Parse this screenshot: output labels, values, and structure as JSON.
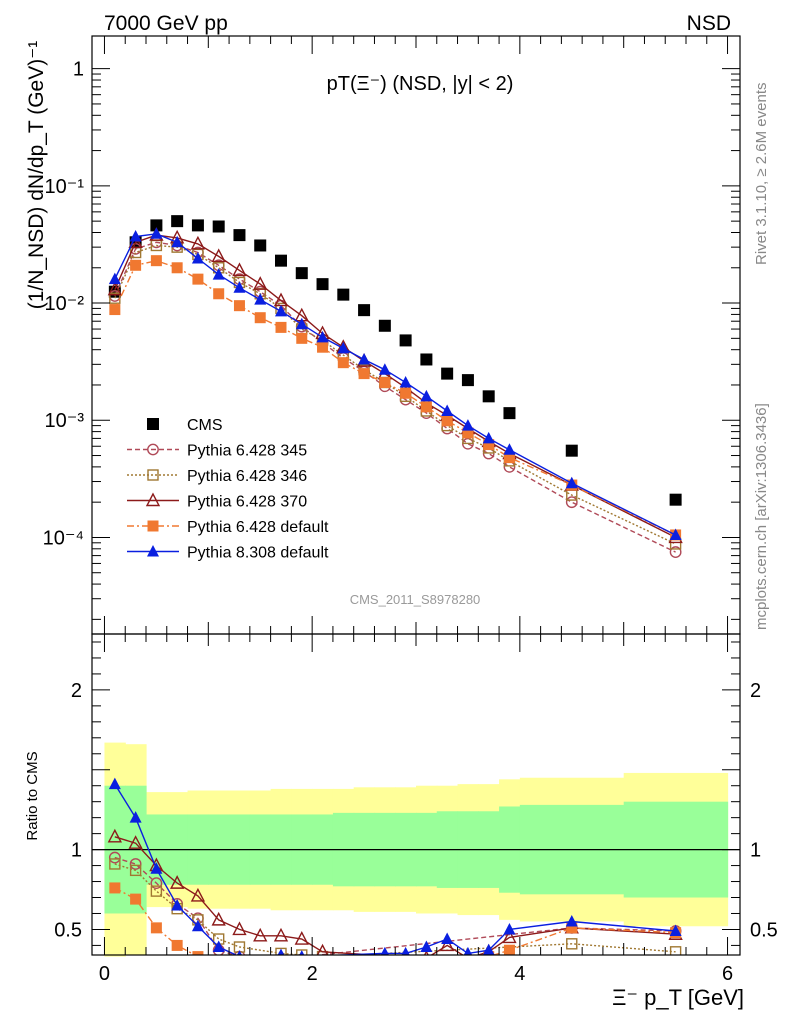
{
  "header": {
    "left": "7000 GeV pp",
    "right": "NSD"
  },
  "side_text": {
    "rivet": "Rivet 3.1.10, ≥ 2.6M events",
    "mcplots": "mcplots.cern.ch [arXiv:1306.3436]"
  },
  "chart_data": [
    {
      "type": "scatter",
      "title": "pT(Ξ⁻) (NSD, |y| < 2)",
      "watermark": "CMS_2011_S8978280",
      "ylabel": "(1/N_NSD) dN/dp_T (GeV)⁻¹",
      "yscale": "log",
      "xlim": [
        -0.12,
        6.12
      ],
      "ylim": [
        1.5e-05,
        1.9
      ],
      "ytick_labels": [
        "10⁻⁴",
        "10⁻³",
        "10⁻²",
        "10⁻¹",
        "1"
      ],
      "legend_position": "lower-left",
      "x": [
        0.1,
        0.3,
        0.5,
        0.7,
        0.9,
        1.1,
        1.3,
        1.5,
        1.7,
        1.9,
        2.1,
        2.3,
        2.5,
        2.7,
        2.9,
        3.1,
        3.3,
        3.5,
        3.7,
        3.9,
        4.5,
        5.5
      ],
      "series": [
        {
          "name": "CMS",
          "color": "#000000",
          "marker": "square",
          "line": "none",
          "values": [
            0.0125,
            0.033,
            0.046,
            0.05,
            0.046,
            0.045,
            0.038,
            0.031,
            0.023,
            0.018,
            0.0145,
            0.0118,
            0.0087,
            0.0064,
            0.0048,
            0.0033,
            0.0025,
            0.0022,
            0.0016,
            0.00115,
            0.00055,
            0.00021
          ]
        },
        {
          "name": "Pythia 6.428 345",
          "color": "#b04a58",
          "marker": "circle-open",
          "line": "dashed",
          "values": [
            0.0115,
            0.029,
            0.033,
            0.031,
            0.027,
            0.021,
            0.016,
            0.0125,
            0.0095,
            0.0063,
            0.0046,
            0.0034,
            0.0026,
            0.00195,
            0.0015,
            0.00115,
            0.00085,
            0.00063,
            0.00052,
            0.0004,
            0.0002,
            7.5e-05
          ]
        },
        {
          "name": "Pythia 6.428 346",
          "color": "#a07832",
          "marker": "square-open",
          "line": "dotted",
          "values": [
            0.011,
            0.027,
            0.031,
            0.03,
            0.026,
            0.02,
            0.015,
            0.012,
            0.009,
            0.006,
            0.0048,
            0.0036,
            0.0027,
            0.0021,
            0.0016,
            0.0012,
            0.0009,
            0.0007,
            0.00058,
            0.00045,
            0.00023,
            8.8e-05
          ]
        },
        {
          "name": "Pythia 6.428 370",
          "color": "#8c1a1a",
          "marker": "triangle-open",
          "line": "solid",
          "values": [
            0.013,
            0.033,
            0.038,
            0.036,
            0.032,
            0.025,
            0.019,
            0.0145,
            0.0105,
            0.0078,
            0.0055,
            0.0042,
            0.0032,
            0.0025,
            0.0019,
            0.0014,
            0.0011,
            0.00085,
            0.00066,
            0.00052,
            0.00028,
            0.0001
          ]
        },
        {
          "name": "Pythia 6.428 default",
          "color": "#f07830",
          "marker": "square",
          "line": "dashdot",
          "values": [
            0.0088,
            0.021,
            0.023,
            0.02,
            0.016,
            0.012,
            0.0095,
            0.0075,
            0.0062,
            0.005,
            0.0042,
            0.0031,
            0.0025,
            0.0021,
            0.0017,
            0.0013,
            0.00099,
            0.00078,
            0.00062,
            0.00048,
            0.00028,
            0.000105
          ]
        },
        {
          "name": "Pythia 8.308 default",
          "color": "#0a1fe0",
          "marker": "triangle",
          "line": "solid",
          "values": [
            0.016,
            0.037,
            0.039,
            0.033,
            0.024,
            0.0175,
            0.0135,
            0.0107,
            0.0085,
            0.0066,
            0.0051,
            0.0041,
            0.0033,
            0.0027,
            0.0021,
            0.0016,
            0.0012,
            0.0009,
            0.0007,
            0.00056,
            0.00029,
            0.000105
          ]
        }
      ]
    },
    {
      "type": "line",
      "ylabel": "Ratio to CMS",
      "xlabel": "Ξ⁻ p_T [GeV]",
      "xlim": [
        -0.12,
        6.12
      ],
      "ylim": [
        0.34,
        2.35
      ],
      "x_ticks": [
        0,
        2,
        4,
        6
      ],
      "y_ticks": [
        0.5,
        1,
        2
      ],
      "x_bins": [
        [
          0.0,
          0.2
        ],
        [
          0.2,
          0.4
        ],
        [
          0.4,
          0.6
        ],
        [
          0.6,
          0.8
        ],
        [
          0.8,
          1.0
        ],
        [
          1.0,
          1.2
        ],
        [
          1.2,
          1.4
        ],
        [
          1.4,
          1.6
        ],
        [
          1.6,
          1.8
        ],
        [
          1.8,
          2.0
        ],
        [
          2.0,
          2.2
        ],
        [
          2.2,
          2.4
        ],
        [
          2.4,
          2.6
        ],
        [
          2.6,
          2.8
        ],
        [
          2.8,
          3.0
        ],
        [
          3.0,
          3.2
        ],
        [
          3.2,
          3.4
        ],
        [
          3.4,
          3.6
        ],
        [
          3.6,
          3.8
        ],
        [
          3.8,
          4.0
        ],
        [
          4.0,
          5.0
        ],
        [
          5.0,
          6.0
        ]
      ],
      "band_yellow": [
        0.67,
        0.66,
        0.36,
        0.36,
        0.37,
        0.37,
        0.37,
        0.37,
        0.38,
        0.38,
        0.38,
        0.38,
        0.39,
        0.39,
        0.39,
        0.4,
        0.4,
        0.41,
        0.41,
        0.44,
        0.45,
        0.48
      ],
      "band_green": [
        0.4,
        0.4,
        0.22,
        0.22,
        0.22,
        0.22,
        0.22,
        0.22,
        0.22,
        0.22,
        0.22,
        0.23,
        0.23,
        0.23,
        0.23,
        0.23,
        0.24,
        0.24,
        0.24,
        0.27,
        0.28,
        0.3
      ],
      "series": [
        {
          "name": "Pythia 6.428 345",
          "color": "#b04a58",
          "marker": "circle-open",
          "line": "dashed",
          "points": [
            [
              0.1,
              0.95
            ],
            [
              0.3,
              0.91
            ],
            [
              0.5,
              0.79
            ],
            [
              0.7,
              0.66
            ],
            [
              0.9,
              0.57
            ],
            [
              1.1,
              0.37
            ],
            [
              1.3,
              0.33
            ],
            [
              1.5,
              0.3
            ],
            [
              4.5,
              0.51
            ],
            [
              5.5,
              0.49
            ]
          ]
        },
        {
          "name": "Pythia 6.428 346",
          "color": "#a07832",
          "marker": "square-open",
          "line": "dotted",
          "points": [
            [
              0.1,
              0.91
            ],
            [
              0.3,
              0.87
            ],
            [
              0.5,
              0.74
            ],
            [
              0.7,
              0.63
            ],
            [
              0.9,
              0.56
            ],
            [
              1.1,
              0.44
            ],
            [
              1.3,
              0.39
            ],
            [
              1.7,
              0.35
            ],
            [
              1.9,
              0.34
            ],
            [
              2.1,
              0.33
            ],
            [
              4.5,
              0.41
            ],
            [
              5.5,
              0.36
            ]
          ]
        },
        {
          "name": "Pythia 6.428 370",
          "color": "#8c1a1a",
          "marker": "triangle-open",
          "line": "solid",
          "points": [
            [
              0.1,
              1.08
            ],
            [
              0.3,
              1.04
            ],
            [
              0.5,
              0.9
            ],
            [
              0.7,
              0.79
            ],
            [
              0.9,
              0.71
            ],
            [
              1.1,
              0.56
            ],
            [
              1.3,
              0.5
            ],
            [
              1.5,
              0.46
            ],
            [
              1.7,
              0.46
            ],
            [
              1.9,
              0.44
            ],
            [
              2.1,
              0.36
            ],
            [
              3.1,
              0.32
            ],
            [
              3.3,
              0.4
            ],
            [
              3.5,
              0.32
            ],
            [
              3.7,
              0.36
            ],
            [
              3.9,
              0.45
            ],
            [
              4.5,
              0.51
            ],
            [
              5.5,
              0.47
            ]
          ]
        },
        {
          "name": "Pythia 6.428 default",
          "color": "#f07830",
          "marker": "square",
          "line": "dashdot",
          "points": [
            [
              0.1,
              0.76
            ],
            [
              0.3,
              0.69
            ],
            [
              0.5,
              0.51
            ],
            [
              0.7,
              0.4
            ],
            [
              0.9,
              0.33
            ],
            [
              3.7,
              0.33
            ],
            [
              3.9,
              0.37
            ],
            [
              4.5,
              0.51
            ],
            [
              5.5,
              0.48
            ]
          ]
        },
        {
          "name": "Pythia 8.308 default",
          "color": "#0a1fe0",
          "marker": "triangle",
          "line": "solid",
          "points": [
            [
              0.1,
              1.41
            ],
            [
              0.3,
              1.2
            ],
            [
              0.5,
              0.88
            ],
            [
              0.7,
              0.65
            ],
            [
              0.9,
              0.52
            ],
            [
              1.1,
              0.39
            ],
            [
              1.3,
              0.33
            ],
            [
              1.7,
              0.34
            ],
            [
              1.9,
              0.33
            ],
            [
              2.7,
              0.35
            ],
            [
              2.9,
              0.35
            ],
            [
              3.1,
              0.39
            ],
            [
              3.3,
              0.44
            ],
            [
              3.5,
              0.35
            ],
            [
              3.7,
              0.37
            ],
            [
              3.9,
              0.5
            ],
            [
              4.5,
              0.55
            ],
            [
              5.5,
              0.49
            ]
          ]
        }
      ]
    }
  ]
}
